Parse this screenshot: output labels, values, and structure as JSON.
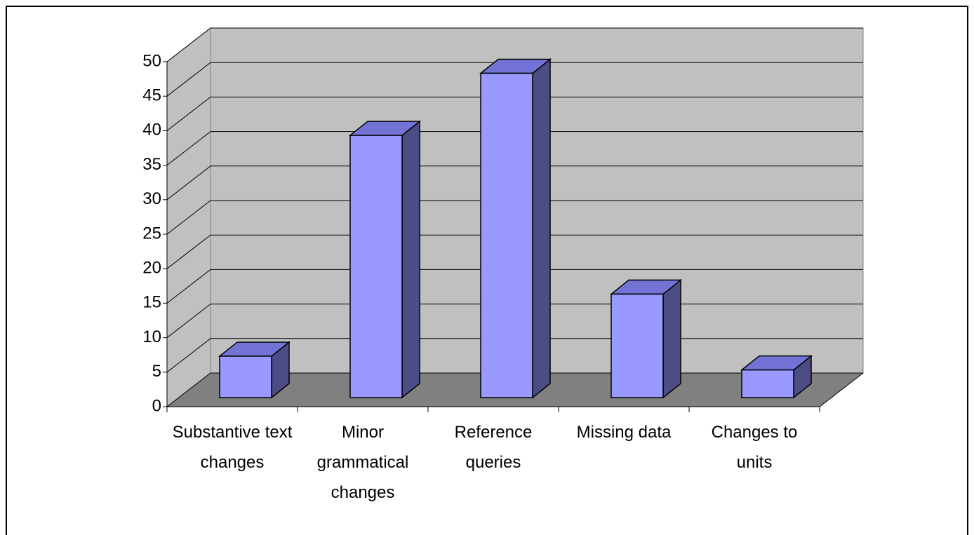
{
  "chart_data": {
    "type": "bar3d",
    "categories": [
      "Substantive text changes",
      "Minor grammatical changes",
      "Reference queries",
      "Missing data",
      "Changes to units"
    ],
    "values": [
      6,
      38,
      47,
      15,
      4
    ],
    "color": "#9999ff",
    "ylim": [
      0,
      50
    ],
    "yticks": [
      0,
      5,
      10,
      15,
      20,
      25,
      30,
      35,
      40,
      45,
      50
    ],
    "grid": true
  }
}
